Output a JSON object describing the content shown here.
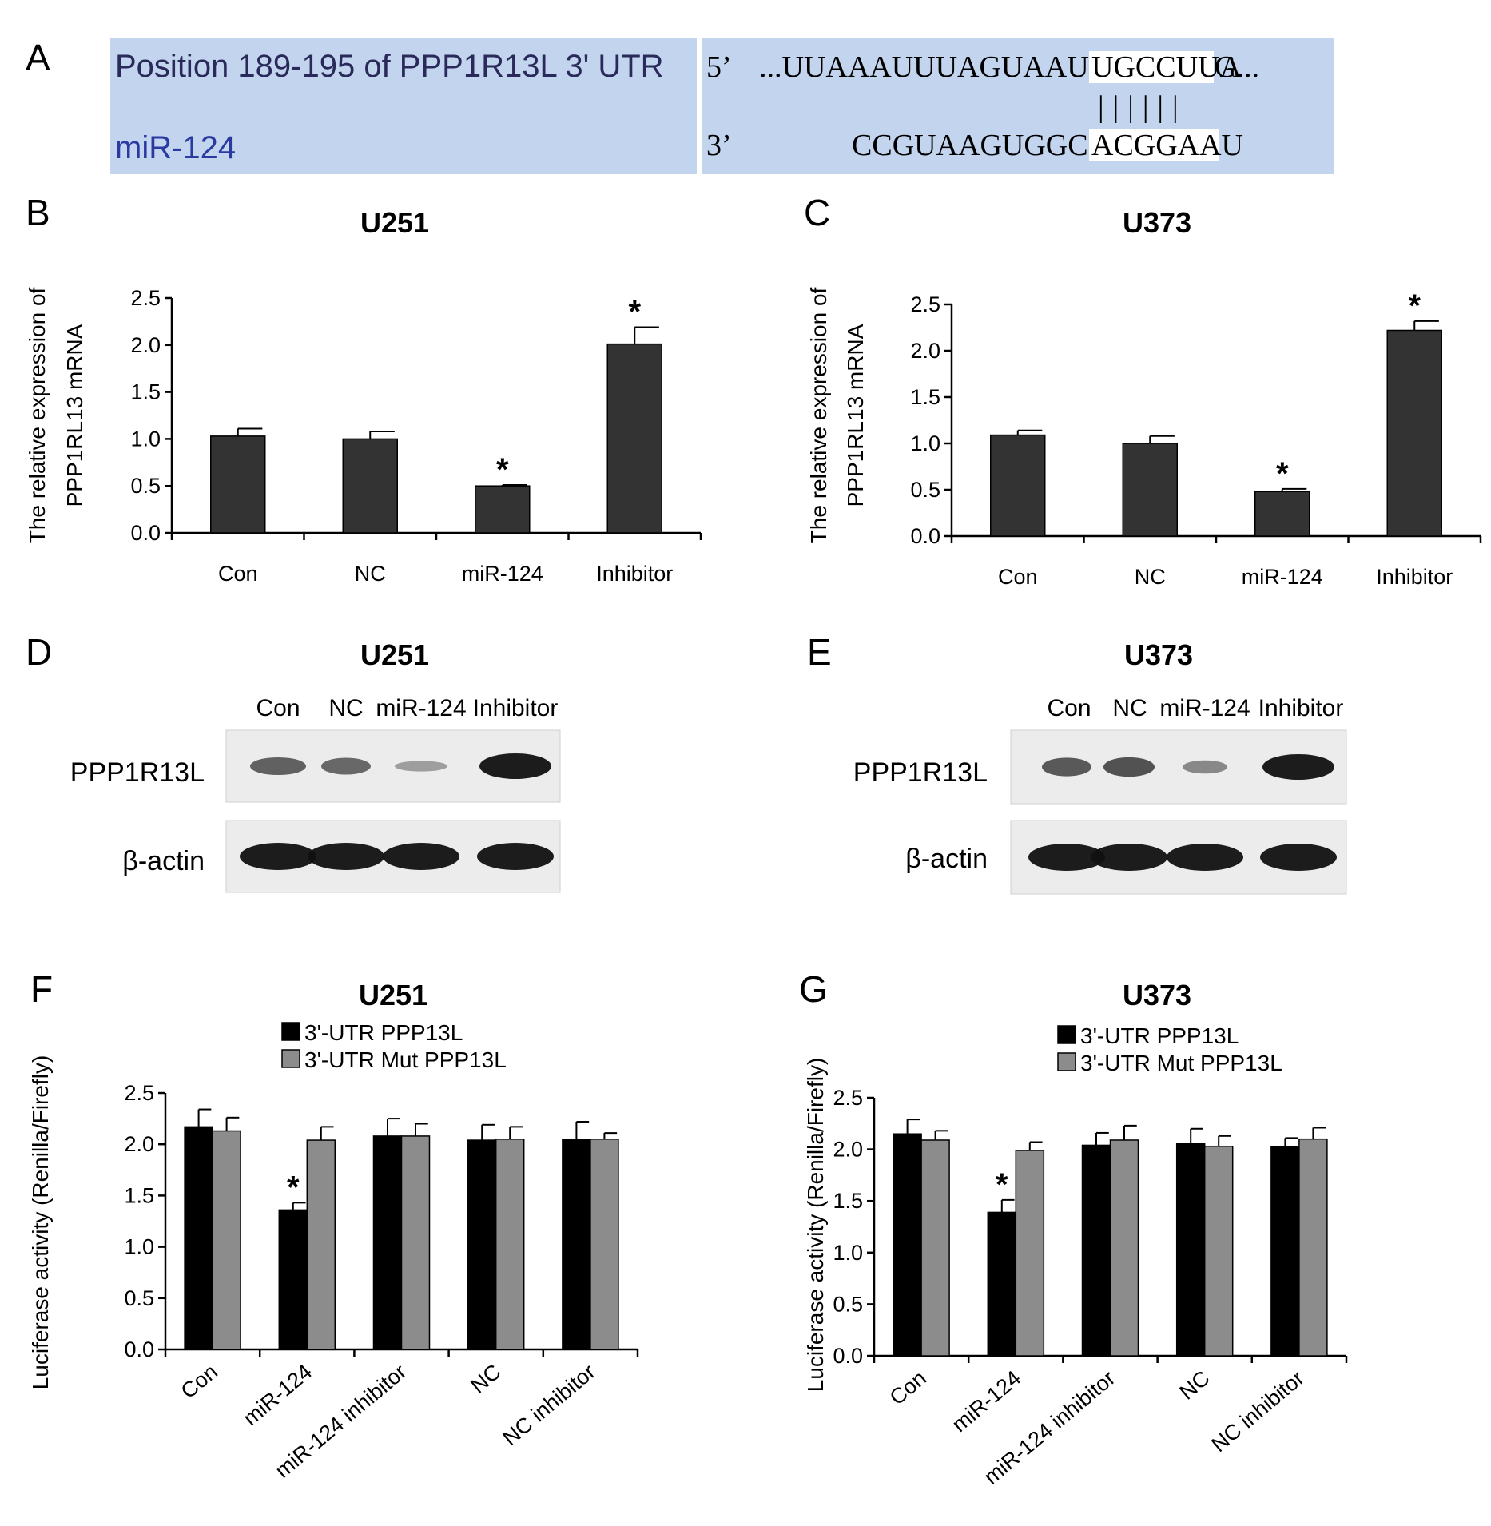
{
  "panels": {
    "A": {
      "letter": "A",
      "utr_label": "Position 189-195 of PPP1R13L 3' UTR",
      "mir_label": "miR-124",
      "five_prime": "5’",
      "three_prime": "3’",
      "top_seq_prefix": "...UUAAAUUUAGUAAUC",
      "top_seq_seed": "UGCCUUA",
      "top_seq_suffix": "G...",
      "pairing": "||||||",
      "bottom_seq_prefix": "CCGUAAGUGGCGC",
      "bottom_seq_seed": "ACGGAAU"
    },
    "B": {
      "letter": "B"
    },
    "C": {
      "letter": "C"
    },
    "D": {
      "letter": "D",
      "title": "U251",
      "lanes": [
        "Con",
        "NC",
        "miR-124",
        "Inhibitor"
      ],
      "rows": [
        "PPP1R13L",
        "β-actin"
      ],
      "band_levels": {
        "PPP1R13L": [
          0.55,
          0.5,
          0.15,
          1.0
        ],
        "β-actin": [
          1,
          1,
          1,
          1
        ]
      }
    },
    "E": {
      "letter": "E",
      "title": "U373",
      "lanes": [
        "Con",
        "NC",
        "miR-124",
        "Inhibitor"
      ],
      "rows": [
        "PPP1R13L",
        "β-actin"
      ],
      "band_levels": {
        "PPP1R13L": [
          0.6,
          0.65,
          0.3,
          1.0
        ],
        "β-actin": [
          1,
          1,
          1,
          1
        ]
      }
    },
    "F": {
      "letter": "F"
    },
    "G": {
      "letter": "G"
    }
  },
  "chart_data": [
    {
      "id": "B",
      "type": "bar",
      "title": "U251",
      "ylabel_lines": [
        "The relative expression of",
        "PPP1RL13 mRNA"
      ],
      "categories": [
        "Con",
        "NC",
        "miR-124",
        "Inhibitor"
      ],
      "series": [
        {
          "values": [
            1.03,
            1.0,
            0.5,
            2.01
          ],
          "errors": [
            0.08,
            0.08,
            0.01,
            0.18
          ],
          "color": "#333333"
        }
      ],
      "significant": [
        false,
        false,
        true,
        true
      ],
      "ylim": [
        0,
        2.5
      ],
      "yticks": [
        "0.0",
        "0.5",
        "1.0",
        "1.5",
        "2.0",
        "2.5"
      ],
      "significance_mark": "*"
    },
    {
      "id": "C",
      "type": "bar",
      "title": "U373",
      "ylabel_lines": [
        "The relative expression of",
        "PPP1RL13 mRNA"
      ],
      "categories": [
        "Con",
        "NC",
        "miR-124",
        "Inhibitor"
      ],
      "series": [
        {
          "values": [
            1.09,
            1.0,
            0.48,
            2.22
          ],
          "errors": [
            0.05,
            0.08,
            0.03,
            0.1
          ],
          "color": "#333333"
        }
      ],
      "significant": [
        false,
        false,
        true,
        true
      ],
      "ylim": [
        0,
        2.5
      ],
      "yticks": [
        "0.0",
        "0.5",
        "1.0",
        "1.5",
        "2.0",
        "2.5"
      ],
      "significance_mark": "*"
    },
    {
      "id": "F",
      "type": "bar",
      "title": "U251",
      "ylabel_lines": [
        "Luciferase activity (Renilla/Firefly)"
      ],
      "categories": [
        "Con",
        "miR-124",
        "miR-124 inhibitor",
        "NC",
        "NC inhibitor"
      ],
      "series": [
        {
          "name": "3'-UTR PPP13L",
          "values": [
            2.17,
            1.36,
            2.08,
            2.04,
            2.05
          ],
          "errors": [
            0.17,
            0.07,
            0.17,
            0.15,
            0.17
          ],
          "color": "#000000"
        },
        {
          "name": "3'-UTR Mut PPP13L",
          "values": [
            2.13,
            2.04,
            2.08,
            2.05,
            2.05
          ],
          "errors": [
            0.13,
            0.13,
            0.12,
            0.12,
            0.06
          ],
          "color": "#8c8c8c"
        }
      ],
      "significant": [
        [
          false,
          true,
          false,
          false,
          false
        ],
        [
          false,
          false,
          false,
          false,
          false
        ]
      ],
      "ylim": [
        0,
        2.5
      ],
      "yticks": [
        "0.0",
        "0.5",
        "1.0",
        "1.5",
        "2.0",
        "2.5"
      ],
      "legend": "top-center",
      "significance_mark": "*"
    },
    {
      "id": "G",
      "type": "bar",
      "title": "U373",
      "ylabel_lines": [
        "Luciferase activity (Renilla/Firefly)"
      ],
      "categories": [
        "Con",
        "miR-124",
        "miR-124 inhibitor",
        "NC",
        "NC inhibitor"
      ],
      "series": [
        {
          "name": "3'-UTR PPP13L",
          "values": [
            2.15,
            1.39,
            2.04,
            2.06,
            2.03
          ],
          "errors": [
            0.14,
            0.12,
            0.12,
            0.14,
            0.08
          ],
          "color": "#000000"
        },
        {
          "name": "3'-UTR Mut PPP13L",
          "values": [
            2.09,
            1.99,
            2.09,
            2.03,
            2.1
          ],
          "errors": [
            0.09,
            0.08,
            0.14,
            0.1,
            0.11
          ],
          "color": "#8c8c8c"
        }
      ],
      "significant": [
        [
          false,
          true,
          false,
          false,
          false
        ],
        [
          false,
          false,
          false,
          false,
          false
        ]
      ],
      "ylim": [
        0,
        2.5
      ],
      "yticks": [
        "0.0",
        "0.5",
        "1.0",
        "1.5",
        "2.0",
        "2.5"
      ],
      "legend": "top-center",
      "significance_mark": "*"
    }
  ]
}
